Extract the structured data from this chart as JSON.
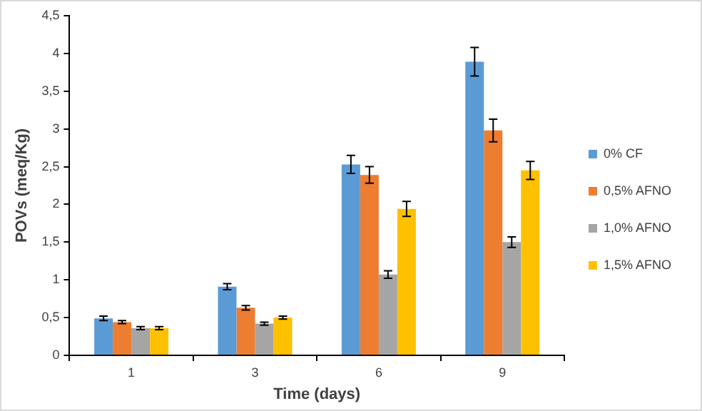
{
  "chart_data": {
    "type": "bar",
    "xlabel": "Time (days)",
    "ylabel": "POVs (meq/Kg)",
    "categories": [
      "1",
      "3",
      "6",
      "9"
    ],
    "series": [
      {
        "name": "0% CF",
        "color": "#5b9bd5",
        "values": [
          0.49,
          0.91,
          2.53,
          3.89
        ],
        "errors": [
          0.03,
          0.04,
          0.12,
          0.19
        ]
      },
      {
        "name": "0,5% AFNO",
        "color": "#ed7d31",
        "values": [
          0.44,
          0.63,
          2.39,
          2.98
        ],
        "errors": [
          0.02,
          0.03,
          0.11,
          0.15
        ]
      },
      {
        "name": "1,0% AFNO",
        "color": "#a5a5a5",
        "values": [
          0.36,
          0.42,
          1.07,
          1.5
        ],
        "errors": [
          0.02,
          0.02,
          0.05,
          0.07
        ]
      },
      {
        "name": "1,5% AFNO",
        "color": "#ffc000",
        "values": [
          0.36,
          0.5,
          1.94,
          2.45
        ],
        "errors": [
          0.02,
          0.02,
          0.1,
          0.12
        ]
      }
    ],
    "ylim": [
      0,
      4.5
    ],
    "yticks": [
      0,
      {
        "value": 0.5,
        "label": "0,5"
      },
      1,
      {
        "value": 1.5,
        "label": "1,5"
      },
      2,
      {
        "value": 2.5,
        "label": "2,5"
      },
      3,
      {
        "value": 3.5,
        "label": "3,5"
      },
      4,
      {
        "value": 4.5,
        "label": "4,5"
      }
    ],
    "grid": false,
    "legend": "right"
  }
}
